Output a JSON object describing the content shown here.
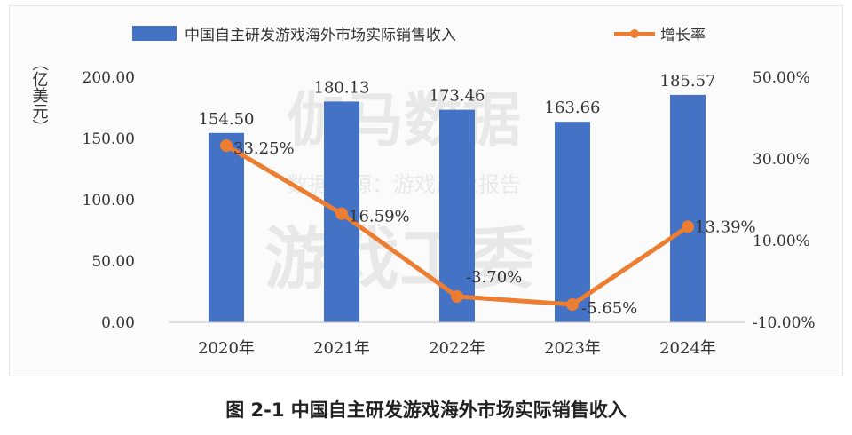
{
  "chart_data": {
    "type": "bar+line",
    "categories": [
      "2020年",
      "2021年",
      "2022年",
      "2023年",
      "2024年"
    ],
    "series": [
      {
        "name": "中国自主研发游戏海外市场实际销售收入",
        "type": "bar",
        "axis": "left",
        "values": [
          154.5,
          180.13,
          173.46,
          163.66,
          185.57
        ],
        "labels": [
          "154.50",
          "180.13",
          "173.46",
          "163.66",
          "185.57"
        ],
        "color": "#4472C4"
      },
      {
        "name": "增长率",
        "type": "line",
        "axis": "right",
        "values": [
          33.25,
          16.59,
          -3.7,
          -5.65,
          13.39
        ],
        "labels": [
          "33.25%",
          "16.59%",
          "-3.70%",
          "-5.65%",
          "13.39%"
        ],
        "color": "#ED7D31"
      }
    ],
    "y_left": {
      "label": "（亿美元）",
      "range": [
        0,
        200
      ],
      "ticks": [
        "0.00",
        "50.00",
        "100.00",
        "150.00",
        "200.00"
      ]
    },
    "y_right": {
      "range": [
        -10,
        50
      ],
      "ticks": [
        "-10.00%",
        "10.00%",
        "30.00%",
        "50.00%"
      ]
    },
    "legend_position": "top",
    "grid": false
  },
  "caption": "图 2-1  中国自主研发游戏海外市场实际销售收入",
  "watermark": {
    "line1": "伽马数据",
    "line2": "数据来源：游戏产业报告",
    "line3": "游戏工委"
  }
}
